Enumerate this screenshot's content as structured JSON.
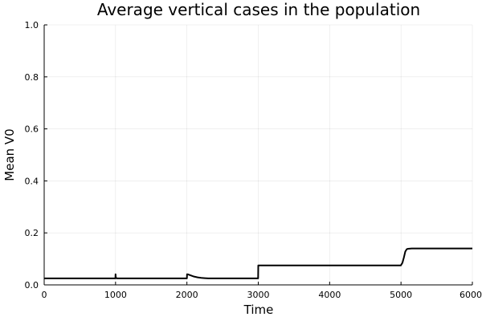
{
  "chart_data": {
    "type": "line",
    "title": "Average vertical cases in the population",
    "xlabel": "Time",
    "ylabel": "Mean V0",
    "xlim": [
      0,
      6000
    ],
    "ylim": [
      0,
      1.0
    ],
    "xticks": [
      0,
      1000,
      2000,
      3000,
      4000,
      5000,
      6000
    ],
    "xtick_labels": [
      "0",
      "1000",
      "2000",
      "3000",
      "4000",
      "5000",
      "6000"
    ],
    "yticks": [
      0.0,
      0.2,
      0.4,
      0.6,
      0.8,
      1.0
    ],
    "ytick_labels": [
      "0.0",
      "0.2",
      "0.4",
      "0.6",
      "0.8",
      "1.0"
    ],
    "grid": true,
    "legend": "none",
    "series": [
      {
        "color": "#000000",
        "x": [
          0,
          998,
          1000,
          1002,
          1010,
          1020,
          2000,
          2002,
          2020,
          2050,
          2100,
          2150,
          2200,
          2250,
          2300,
          2400,
          2998,
          3000,
          3002,
          3020,
          4000,
          4998,
          5020,
          5040,
          5060,
          5080,
          5100,
          5150,
          6000
        ],
        "y": [
          0.025,
          0.025,
          0.041,
          0.031,
          0.026,
          0.025,
          0.025,
          0.041,
          0.04,
          0.037,
          0.032,
          0.029,
          0.027,
          0.026,
          0.025,
          0.025,
          0.025,
          0.075,
          0.075,
          0.075,
          0.075,
          0.075,
          0.085,
          0.105,
          0.128,
          0.137,
          0.139,
          0.14,
          0.14
        ]
      }
    ]
  }
}
